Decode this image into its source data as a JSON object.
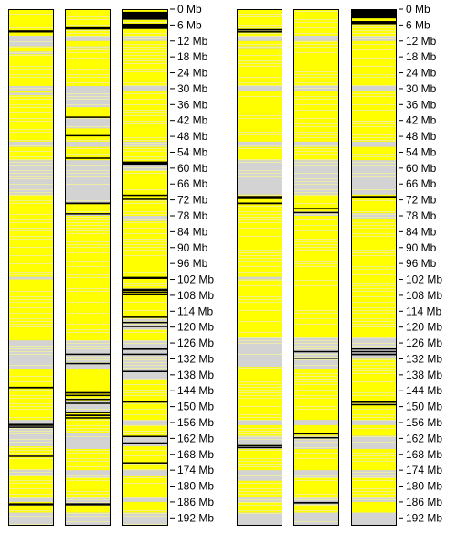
{
  "chart_data": {
    "type": "heatmap",
    "units": "Mb",
    "axis_range": [
      0,
      195
    ],
    "colors": {
      "background": "#ffffff",
      "track_base": "#ffff00",
      "gap": "#d3d3d3",
      "light_line": "#f0f0a0",
      "dark_line": "#000000",
      "outline": "#000000"
    },
    "axis_ticks": [
      {
        "value": 0,
        "label": "0 Mb"
      },
      {
        "value": 6,
        "label": "6 Mb"
      },
      {
        "value": 12,
        "label": "12 Mb"
      },
      {
        "value": 18,
        "label": "18 Mb"
      },
      {
        "value": 24,
        "label": "24 Mb"
      },
      {
        "value": 30,
        "label": "30 Mb"
      },
      {
        "value": 36,
        "label": "36 Mb"
      },
      {
        "value": 42,
        "label": "42 Mb"
      },
      {
        "value": 48,
        "label": "48 Mb"
      },
      {
        "value": 54,
        "label": "54 Mb"
      },
      {
        "value": 60,
        "label": "60 Mb"
      },
      {
        "value": 66,
        "label": "66 Mb"
      },
      {
        "value": 72,
        "label": "72 Mb"
      },
      {
        "value": 78,
        "label": "78 Mb"
      },
      {
        "value": 84,
        "label": "84 Mb"
      },
      {
        "value": 90,
        "label": "90 Mb"
      },
      {
        "value": 96,
        "label": "96 Mb"
      },
      {
        "value": 102,
        "label": "102 Mb"
      },
      {
        "value": 108,
        "label": "108 Mb"
      },
      {
        "value": 114,
        "label": "114 Mb"
      },
      {
        "value": 120,
        "label": "120 Mb"
      },
      {
        "value": 126,
        "label": "126 Mb"
      },
      {
        "value": 132,
        "label": "132 Mb"
      },
      {
        "value": 138,
        "label": "138 Mb"
      },
      {
        "value": 144,
        "label": "144 Mb"
      },
      {
        "value": 150,
        "label": "150 Mb"
      },
      {
        "value": 156,
        "label": "156 Mb"
      },
      {
        "value": 162,
        "label": "162 Mb"
      },
      {
        "value": 168,
        "label": "168 Mb"
      },
      {
        "value": 174,
        "label": "174 Mb"
      },
      {
        "value": 180,
        "label": "180 Mb"
      },
      {
        "value": 186,
        "label": "186 Mb"
      },
      {
        "value": 192,
        "label": "192 Mb"
      }
    ],
    "panels": [
      {
        "tracks": [
          {
            "gaps": [
              [
                10,
                14
              ],
              [
                16,
                17
              ],
              [
                29,
                31
              ],
              [
                31.5,
                32.5
              ],
              [
                50,
                52
              ],
              [
                57,
                70
              ],
              [
                101,
                102
              ],
              [
                125,
                136
              ],
              [
                155,
                165
              ],
              [
                174,
                176
              ],
              [
                184,
                186
              ],
              [
                190,
                195
              ]
            ],
            "dark": [
              [
                8,
                0.8
              ],
              [
                142.5,
                0.6
              ],
              [
                156.5,
                0.8
              ],
              [
                157.5,
                0.5
              ],
              [
                168.5,
                0.4
              ],
              [
                186.5,
                0.8
              ]
            ]
          },
          {
            "gaps": [
              [
                10,
                12
              ],
              [
                14,
                15
              ],
              [
                29,
                37
              ],
              [
                41,
                45
              ],
              [
                50,
                52
              ],
              [
                57,
                73
              ],
              [
                77,
                78
              ],
              [
                125,
                136
              ],
              [
                148,
                152
              ],
              [
                160,
                166
              ],
              [
                174,
                177
              ],
              [
                184,
                187
              ],
              [
                190,
                195
              ]
            ],
            "dark": [
              [
                6.5,
                1.2
              ],
              [
                40.5,
                0.5
              ],
              [
                47.5,
                0.4
              ],
              [
                56,
                0.5
              ],
              [
                73,
                0.6
              ],
              [
                77,
                0.5
              ],
              [
                130,
                0.5
              ],
              [
                133.5,
                0.4
              ],
              [
                144.5,
                0.6
              ],
              [
                145.5,
                0.4
              ],
              [
                147,
                0.4
              ],
              [
                148.5,
                0.5
              ],
              [
                152,
                0.5
              ],
              [
                153,
                0.6
              ],
              [
                154,
                0.4
              ],
              [
                186.5,
                0.8
              ]
            ]
          },
          {
            "gaps": [
              [
                10,
                12
              ],
              [
                29,
                31
              ],
              [
                50,
                52
              ],
              [
                58,
                61
              ],
              [
                78,
                80
              ],
              [
                117,
                121
              ],
              [
                125,
                140
              ],
              [
                155,
                157
              ],
              [
                161,
                165
              ],
              [
                174,
                176
              ],
              [
                184,
                186
              ],
              [
                190,
                195
              ]
            ],
            "dark": [
              [
                1,
                3
              ],
              [
                5.5,
                2
              ],
              [
                57.5,
                1.2
              ],
              [
                70,
                0.5
              ],
              [
                71.5,
                0.4
              ],
              [
                101,
                0.8
              ],
              [
                105.5,
                0.8
              ],
              [
                106.5,
                0.6
              ],
              [
                107.5,
                0.5
              ],
              [
                116,
                0.4
              ],
              [
                118,
                0.5
              ],
              [
                119.5,
                0.4
              ],
              [
                128,
                0.6
              ],
              [
                130,
                0.4
              ],
              [
                136.5,
                0.5
              ],
              [
                148,
                0.4
              ],
              [
                161,
                0.4
              ],
              [
                163.5,
                0.5
              ],
              [
                171,
                0.4
              ]
            ]
          }
        ]
      },
      {
        "tracks": [
          {
            "gaps": [
              [
                10,
                12
              ],
              [
                14,
                15
              ],
              [
                29,
                31
              ],
              [
                50,
                52
              ],
              [
                57,
                70
              ],
              [
                101,
                102
              ],
              [
                124,
                135
              ],
              [
                155,
                157
              ],
              [
                161,
                166
              ],
              [
                174,
                178
              ],
              [
                184,
                186
              ],
              [
                190,
                195
              ]
            ],
            "dark": [
              [
                7.5,
                0.6
              ],
              [
                8.3,
                0.4
              ],
              [
                70.5,
                1.2
              ],
              [
                73,
                0.6
              ],
              [
                164.5,
                0.5
              ],
              [
                165.2,
                0.4
              ]
            ]
          },
          {
            "gaps": [
              [
                10,
                12
              ],
              [
                29,
                31
              ],
              [
                50,
                52
              ],
              [
                57,
                70
              ],
              [
                77,
                78
              ],
              [
                124,
                136
              ],
              [
                155,
                157
              ],
              [
                161,
                166
              ],
              [
                174,
                177
              ],
              [
                184,
                187
              ],
              [
                190,
                195
              ]
            ],
            "dark": [
              [
                75,
                0.6
              ],
              [
                76.5,
                0.5
              ],
              [
                129,
                0.5
              ],
              [
                131.5,
                0.4
              ],
              [
                160,
                0.5
              ],
              [
                161.5,
                0.4
              ],
              [
                186,
                0.6
              ]
            ]
          },
          {
            "gaps": [
              [
                10,
                12
              ],
              [
                29,
                31
              ],
              [
                50,
                52
              ],
              [
                57,
                70
              ],
              [
                77,
                79
              ],
              [
                124,
                132
              ],
              [
                155,
                157
              ],
              [
                161,
                166
              ],
              [
                174,
                177
              ],
              [
                184,
                186
              ],
              [
                190,
                195
              ]
            ],
            "dark": [
              [
                0,
                2.5
              ],
              [
                2.5,
                1
              ],
              [
                4.5,
                1.2
              ],
              [
                70.5,
                0.6
              ],
              [
                128,
                0.5
              ],
              [
                129,
                0.5
              ],
              [
                130,
                0.6
              ],
              [
                148,
                0.6
              ],
              [
                149,
                0.4
              ]
            ]
          }
        ]
      }
    ]
  }
}
